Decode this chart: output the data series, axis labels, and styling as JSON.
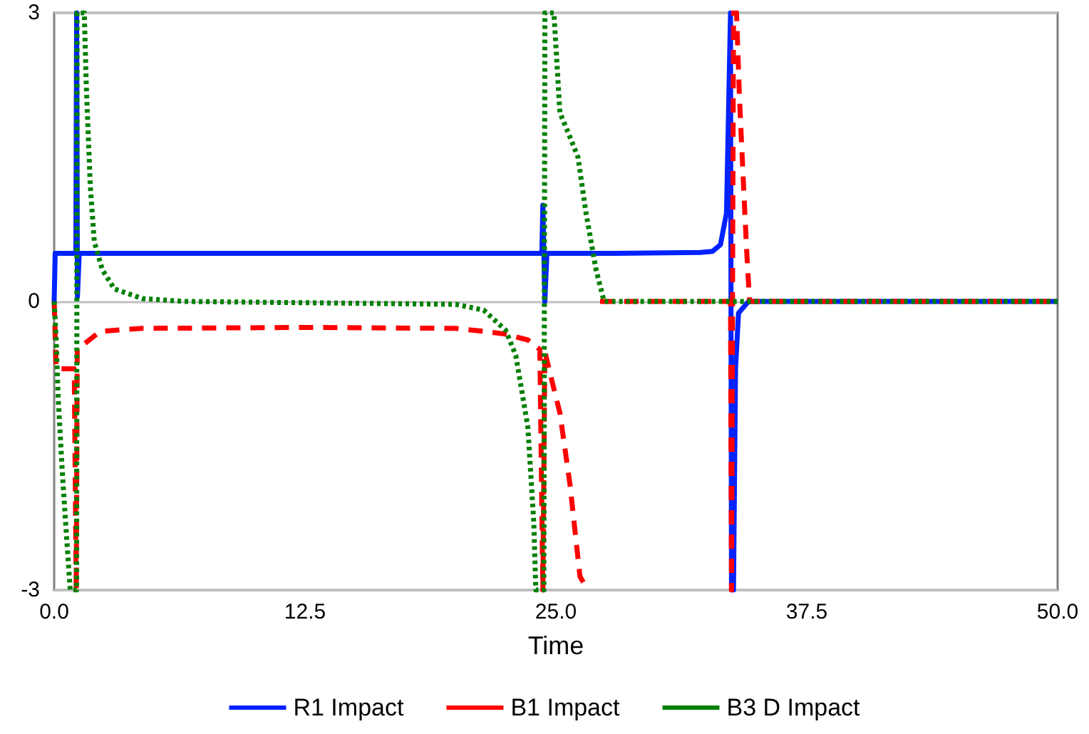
{
  "chart_data": {
    "type": "line",
    "xlabel": "Time",
    "xlim": [
      0,
      50
    ],
    "xticks": [
      {
        "value": 0,
        "label": "0.0"
      },
      {
        "value": 12.5,
        "label": "12.5"
      },
      {
        "value": 25,
        "label": "25.0"
      },
      {
        "value": 37.5,
        "label": "37.5"
      },
      {
        "value": 50,
        "label": "50.0"
      }
    ],
    "ylim": [
      -3,
      3
    ],
    "yticks": [
      -3,
      0,
      3
    ],
    "grid": "y",
    "legend": "bottom",
    "marker": "none",
    "series": [
      {
        "name": "R1 Impact",
        "color": "#0022ff",
        "line_style": "solid",
        "x": [
          0,
          0.05,
          1.08,
          1.12,
          1.16,
          1.25,
          24.3,
          24.35,
          24.45,
          24.55,
          28,
          32.2,
          32.8,
          33.2,
          33.5,
          33.7,
          33.75,
          33.85,
          33.95,
          34.1,
          34.6,
          50
        ],
        "values": [
          0,
          0.5,
          0.5,
          3,
          0.05,
          0.5,
          0.5,
          1.0,
          0,
          0.5,
          0.5,
          0.51,
          0.52,
          0.59,
          0.92,
          3,
          -3,
          -3,
          -0.7,
          -0.12,
          0,
          0
        ]
      },
      {
        "name": "B1 Impact",
        "color": "#ff0000",
        "line_style": "dashed",
        "x": [
          0,
          0.1,
          1.0,
          1.1,
          1.15,
          2.3,
          4.4,
          12.5,
          20,
          21.4,
          22.5,
          23.6,
          24.2,
          24.35,
          24.45,
          24.7,
          25.2,
          25.7,
          26.2,
          26.6,
          26.8,
          27.2,
          33.7,
          33.75,
          33.85,
          34.0,
          34.15,
          34.35,
          34.5,
          34.65,
          50
        ],
        "values": [
          0,
          -0.7,
          -0.7,
          -3,
          -0.5,
          -0.31,
          -0.28,
          -0.27,
          -0.28,
          -0.31,
          -0.34,
          -0.4,
          -0.5,
          -3,
          -0.52,
          -0.74,
          -1.16,
          -1.9,
          -2.86,
          -3,
          null,
          0,
          0,
          -3,
          3,
          3,
          2.1,
          1.2,
          0.55,
          0,
          0
        ]
      },
      {
        "name": "B3 D Impact",
        "color": "#008000",
        "line_style": "dotted",
        "x": [
          0,
          0.1,
          0.2,
          0.4,
          0.57,
          0.8,
          1.12,
          1.14,
          1.5,
          1.6,
          1.8,
          2.0,
          2.4,
          3.0,
          4.4,
          6.5,
          20,
          21.4,
          22.5,
          23,
          23.6,
          23.9,
          24.0,
          24.4,
          24.45,
          24.9,
          25.2,
          25.6,
          26.1,
          26.5,
          27.0,
          27.4,
          50
        ],
        "values": [
          0,
          -0.4,
          -1,
          -1.75,
          -2.3,
          -3,
          -3,
          3,
          3,
          2.25,
          1.2,
          0.62,
          0.33,
          0.13,
          0.03,
          0,
          -0.03,
          -0.09,
          -0.3,
          -0.56,
          -1.3,
          -2.3,
          -3,
          -3,
          3,
          3,
          1.96,
          1.76,
          1.5,
          0.92,
          0.33,
          0,
          0
        ]
      }
    ]
  }
}
